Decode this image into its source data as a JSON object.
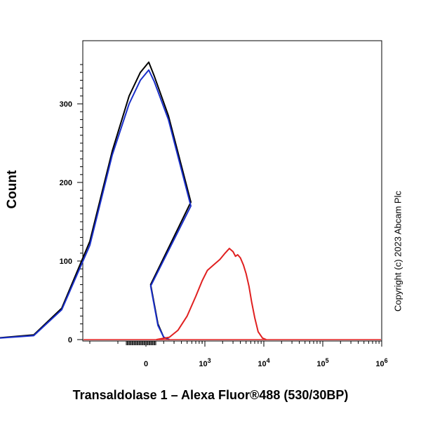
{
  "chart_data": {
    "type": "line",
    "title": "",
    "xlabel": "Transaldolase 1 – Alexa Fluor®488 (530/30BP)",
    "ylabel": "Count",
    "x_scale": "biexponential",
    "ylim": [
      0,
      360
    ],
    "y_ticks": [
      0,
      100,
      200,
      300
    ],
    "x_ticks": [
      {
        "value": 0,
        "label": "0"
      },
      {
        "value": 1000,
        "label": "10",
        "exp": "3"
      },
      {
        "value": 10000,
        "label": "10",
        "exp": "4"
      },
      {
        "value": 100000,
        "label": "10",
        "exp": "5"
      },
      {
        "value": 1000000,
        "label": "10",
        "exp": "6"
      }
    ],
    "grid": false,
    "series": [
      {
        "color": "#000000",
        "points": [
          [
            -300,
            0
          ],
          [
            -200,
            6
          ],
          [
            -150,
            40
          ],
          [
            -100,
            125
          ],
          [
            -60,
            240
          ],
          [
            -30,
            310
          ],
          [
            -10,
            340
          ],
          [
            5,
            353
          ],
          [
            15,
            335
          ],
          [
            40,
            285
          ],
          [
            80,
            175
          ],
          [
            120,
            70
          ],
          [
            160,
            20
          ],
          [
            200,
            3
          ],
          [
            250,
            0
          ]
        ]
      },
      {
        "color": "#1a2fc9",
        "points": [
          [
            -300,
            0
          ],
          [
            -200,
            5
          ],
          [
            -150,
            38
          ],
          [
            -100,
            120
          ],
          [
            -60,
            235
          ],
          [
            -30,
            300
          ],
          [
            -10,
            330
          ],
          [
            5,
            343
          ],
          [
            15,
            328
          ],
          [
            40,
            280
          ],
          [
            80,
            170
          ],
          [
            120,
            68
          ],
          [
            160,
            18
          ],
          [
            200,
            3
          ],
          [
            250,
            0
          ]
        ]
      },
      {
        "color": "#e02020",
        "points": [
          [
            150,
            0
          ],
          [
            250,
            3
          ],
          [
            350,
            12
          ],
          [
            500,
            30
          ],
          [
            700,
            55
          ],
          [
            900,
            75
          ],
          [
            1100,
            88
          ],
          [
            1400,
            95
          ],
          [
            1800,
            102
          ],
          [
            2200,
            110
          ],
          [
            2600,
            116
          ],
          [
            3000,
            112
          ],
          [
            3300,
            106
          ],
          [
            3600,
            108
          ],
          [
            4000,
            104
          ],
          [
            4500,
            95
          ],
          [
            5000,
            84
          ],
          [
            5600,
            68
          ],
          [
            6200,
            48
          ],
          [
            7000,
            28
          ],
          [
            8000,
            10
          ],
          [
            9500,
            2
          ],
          [
            11000,
            0
          ]
        ]
      }
    ]
  },
  "copyright": "Copyright (c) 2023 Abcam Plc"
}
